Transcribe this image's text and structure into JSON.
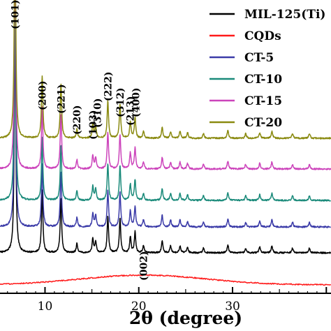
{
  "chart_data": {
    "type": "line",
    "title": "",
    "xlabel": "2θ (degree)",
    "ylabel": "",
    "xlim": [
      5.2,
      40.5
    ],
    "x_ticks": [
      10,
      20,
      30
    ],
    "x_tick_labels": [
      "10",
      "20",
      "30"
    ],
    "grid": false,
    "legend_position": "top-right",
    "series": [
      {
        "name": "MIL-125(Ti)",
        "color": "#000000"
      },
      {
        "name": "CQDs",
        "color": "#ff1a1a"
      },
      {
        "name": "CT-5",
        "color": "#3b3ba8"
      },
      {
        "name": "CT-10",
        "color": "#1a8a7a"
      },
      {
        "name": "CT-15",
        "color": "#cc44bb"
      },
      {
        "name": "CT-20",
        "color": "#8a8a10"
      }
    ],
    "peaks": [
      {
        "x": 6.8,
        "intensity": 1.0
      },
      {
        "x": 9.7,
        "intensity": 0.27
      },
      {
        "x": 11.7,
        "intensity": 0.24
      },
      {
        "x": 13.4,
        "intensity": 0.04
      },
      {
        "x": 15.1,
        "intensity": 0.06
      },
      {
        "x": 15.4,
        "intensity": 0.05
      },
      {
        "x": 16.7,
        "intensity": 0.16
      },
      {
        "x": 18.0,
        "intensity": 0.15
      },
      {
        "x": 19.1,
        "intensity": 0.07
      },
      {
        "x": 19.6,
        "intensity": 0.09
      },
      {
        "x": 20.5,
        "intensity": 0.03
      },
      {
        "x": 22.5,
        "intensity": 0.05
      },
      {
        "x": 23.4,
        "intensity": 0.03
      },
      {
        "x": 24.4,
        "intensity": 0.03
      },
      {
        "x": 25.2,
        "intensity": 0.025
      },
      {
        "x": 26.9,
        "intensity": 0.02
      },
      {
        "x": 29.5,
        "intensity": 0.035
      },
      {
        "x": 31.4,
        "intensity": 0.02
      },
      {
        "x": 32.9,
        "intensity": 0.025
      },
      {
        "x": 34.2,
        "intensity": 0.03
      },
      {
        "x": 36.4,
        "intensity": 0.02
      },
      {
        "x": 38.2,
        "intensity": 0.02
      }
    ],
    "broad_peak": {
      "series": "CQDs",
      "label": "(002)",
      "center": 20.5
    },
    "annotations": [
      {
        "label": "(101)",
        "x": 6.8
      },
      {
        "label": "(200)",
        "x": 9.7
      },
      {
        "label": "(221)",
        "x": 11.7
      },
      {
        "label": "(220)",
        "x": 13.4
      },
      {
        "label": "(103)",
        "x": 15.1
      },
      {
        "label": "(310)",
        "x": 15.6
      },
      {
        "label": "(222)",
        "x": 16.7
      },
      {
        "label": "(312)",
        "x": 18.0
      },
      {
        "label": "(213)",
        "x": 19.1
      },
      {
        "label": "(400)",
        "x": 19.7
      }
    ]
  }
}
